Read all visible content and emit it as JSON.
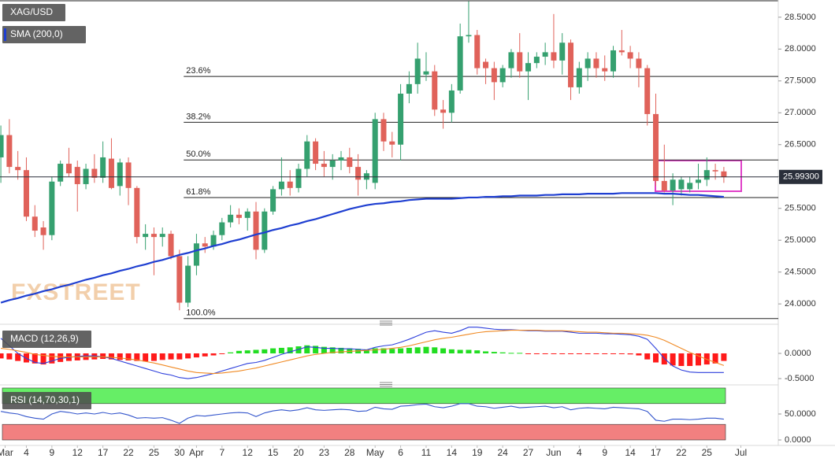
{
  "chart_data": [
    {
      "type": "candlestick",
      "series": [
        {
          "name": "XAG/USD",
          "up_color": "#35a06f",
          "down_color": "#e0625a",
          "open": [
            26.3,
            26.65,
            26.15,
            26.1,
            25.37,
            25.2,
            25.08,
            25.92,
            26.2,
            26.15,
            25.88,
            26.12,
            25.98,
            26.28,
            25.85,
            26.22,
            25.82,
            25.05,
            25.1,
            25.05,
            25.1,
            24.75,
            24.02,
            24.6,
            24.95,
            24.9,
            25.08,
            25.28,
            25.4,
            25.35,
            25.45,
            24.85,
            25.45,
            25.8,
            25.92,
            25.82,
            26.12,
            26.55,
            26.2,
            26.15,
            26.25,
            26.3,
            26.15,
            25.95,
            25.9,
            26.9,
            26.55,
            26.5,
            27.3,
            27.45,
            27.6,
            27.65,
            27.05,
            27.0,
            27.35,
            28.2,
            28.22,
            27.8,
            27.7,
            27.48,
            27.7,
            27.95,
            27.65,
            27.78,
            27.88,
            27.95,
            27.82,
            28.1,
            27.4,
            27.7,
            27.85,
            27.7,
            27.65,
            27.98,
            27.95,
            27.85,
            27.7,
            26.98,
            25.93,
            25.78,
            25.8,
            25.8,
            25.9,
            25.95,
            26.1,
            26.08
          ],
          "high": [
            26.8,
            26.9,
            26.4,
            26.3,
            25.55,
            25.3,
            26.0,
            26.25,
            26.45,
            26.25,
            26.2,
            26.35,
            26.55,
            26.6,
            26.28,
            26.3,
            25.85,
            25.25,
            25.2,
            25.2,
            25.15,
            24.85,
            24.75,
            25.1,
            25.05,
            25.15,
            25.35,
            25.55,
            25.5,
            25.5,
            25.6,
            25.5,
            25.85,
            26.3,
            26.1,
            26.2,
            26.65,
            26.6,
            26.4,
            26.35,
            26.4,
            26.45,
            26.35,
            26.1,
            27.0,
            27.0,
            26.7,
            27.45,
            27.65,
            28.1,
            27.95,
            27.75,
            27.2,
            27.45,
            28.4,
            28.75,
            28.3,
            27.85,
            27.8,
            27.75,
            28.0,
            28.25,
            27.95,
            27.95,
            28.1,
            28.55,
            28.25,
            28.15,
            27.8,
            27.95,
            27.95,
            27.9,
            28.05,
            28.3,
            28.05,
            27.95,
            27.75,
            27.3,
            26.5,
            26.05,
            26.0,
            26.0,
            26.2,
            26.3,
            26.2,
            26.15
          ],
          "low": [
            25.9,
            26.05,
            25.95,
            25.3,
            25.05,
            24.85,
            25.0,
            25.85,
            26.0,
            25.45,
            25.8,
            25.9,
            25.9,
            25.8,
            25.7,
            25.55,
            24.95,
            24.85,
            24.45,
            24.9,
            24.7,
            23.9,
            23.95,
            24.45,
            24.8,
            24.85,
            25.0,
            25.2,
            25.25,
            25.15,
            24.7,
            24.8,
            25.4,
            25.7,
            25.7,
            25.75,
            26.0,
            26.1,
            26.0,
            25.95,
            26.1,
            26.05,
            25.7,
            25.8,
            25.8,
            26.4,
            26.3,
            26.25,
            27.15,
            27.3,
            27.5,
            26.95,
            26.75,
            26.85,
            27.3,
            28.1,
            27.6,
            27.45,
            27.2,
            27.4,
            27.55,
            27.55,
            27.2,
            27.7,
            27.75,
            27.7,
            27.6,
            27.2,
            27.3,
            27.5,
            27.55,
            27.5,
            27.55,
            27.9,
            27.7,
            27.4,
            26.8,
            25.85,
            25.75,
            25.55,
            25.7,
            25.75,
            25.8,
            25.85,
            25.95,
            25.9
          ],
          "close": [
            26.65,
            26.15,
            26.1,
            25.37,
            25.15,
            25.08,
            25.92,
            26.2,
            26.05,
            25.88,
            26.12,
            25.98,
            26.3,
            25.82,
            26.22,
            25.82,
            25.05,
            25.1,
            25.05,
            25.1,
            24.75,
            24.02,
            24.6,
            24.95,
            24.9,
            25.08,
            25.28,
            25.4,
            25.35,
            25.45,
            24.85,
            25.45,
            25.8,
            25.92,
            25.82,
            26.12,
            26.55,
            26.2,
            26.15,
            26.25,
            26.3,
            26.15,
            25.95,
            26.05,
            26.9,
            26.55,
            26.5,
            27.3,
            27.45,
            27.85,
            27.65,
            27.05,
            27.0,
            27.35,
            28.2,
            28.22,
            27.7,
            27.7,
            27.48,
            27.7,
            27.95,
            27.65,
            27.78,
            27.88,
            27.95,
            27.82,
            28.1,
            27.4,
            27.7,
            27.85,
            27.7,
            27.65,
            27.98,
            27.95,
            27.85,
            27.7,
            26.98,
            25.93,
            25.78,
            25.95,
            25.95,
            25.9,
            25.95,
            26.1,
            26.08,
            25.99
          ]
        },
        {
          "name": "SMA (200,0)",
          "color": "#1f3fd1",
          "values": [
            24.02,
            24.06,
            24.09,
            24.13,
            24.16,
            24.2,
            24.23,
            24.27,
            24.3,
            24.34,
            24.38,
            24.41,
            24.45,
            24.48,
            24.52,
            24.55,
            24.59,
            24.62,
            24.66,
            24.69,
            24.73,
            24.77,
            24.8,
            24.84,
            24.87,
            24.91,
            24.94,
            24.98,
            25.01,
            25.05,
            25.09,
            25.12,
            25.16,
            25.19,
            25.23,
            25.26,
            25.3,
            25.33,
            25.37,
            25.41,
            25.45,
            25.49,
            25.52,
            25.55,
            25.57,
            25.58,
            25.6,
            25.61,
            25.63,
            25.64,
            25.65,
            25.65,
            25.65,
            25.65,
            25.66,
            25.67,
            25.67,
            25.68,
            25.68,
            25.69,
            25.69,
            25.7,
            25.7,
            25.7,
            25.71,
            25.71,
            25.72,
            25.72,
            25.72,
            25.73,
            25.73,
            25.73,
            25.73,
            25.74,
            25.74,
            25.74,
            25.74,
            25.74,
            25.73,
            25.73,
            25.72,
            25.71,
            25.71,
            25.7,
            25.69,
            25.68
          ]
        }
      ],
      "fib_levels": [
        {
          "value": 27.57,
          "label": "23.6%"
        },
        {
          "value": 26.85,
          "label": "38.2%"
        },
        {
          "value": 26.26,
          "label": "50.0%"
        },
        {
          "value": 25.67,
          "label": "61.8%"
        },
        {
          "value": 23.77,
          "label": "100.0%"
        }
      ],
      "last_price": {
        "value": 25.993,
        "label": "25.99300"
      },
      "watermark": "FXSTREET",
      "xlim": [
        -0.1,
        91.4
      ],
      "ylim": [
        23.73,
        28.77
      ],
      "yticks": [
        {
          "value": 24,
          "label": "24.0000"
        },
        {
          "value": 24.5,
          "label": "24.5000"
        },
        {
          "value": 25,
          "label": "25.0000"
        },
        {
          "value": 25.5,
          "label": "25.5000"
        },
        {
          "value": 26,
          "label": "26.0000"
        },
        {
          "value": 26.5,
          "label": "26.5000"
        },
        {
          "value": 27,
          "label": "27.0000"
        },
        {
          "value": 27.5,
          "label": "27.5000"
        },
        {
          "value": 28,
          "label": "28.0000"
        },
        {
          "value": 28.5,
          "label": "28.5000"
        }
      ]
    },
    {
      "type": "macd",
      "title": "MACD (12,26,9)",
      "histogram": {
        "up_color": "#22dd22",
        "down_color": "#ff1a1a",
        "values": [
          -0.1,
          -0.12,
          -0.15,
          -0.18,
          -0.2,
          -0.22,
          -0.2,
          -0.17,
          -0.15,
          -0.14,
          -0.13,
          -0.12,
          -0.11,
          -0.12,
          -0.13,
          -0.14,
          -0.15,
          -0.16,
          -0.15,
          -0.13,
          -0.12,
          -0.12,
          -0.1,
          -0.08,
          -0.06,
          -0.04,
          -0.01,
          0.02,
          0.05,
          0.06,
          0.07,
          0.08,
          0.1,
          0.11,
          0.12,
          0.14,
          0.16,
          0.15,
          0.13,
          0.12,
          0.11,
          0.1,
          0.09,
          0.08,
          0.1,
          0.1,
          0.09,
          0.1,
          0.11,
          0.12,
          0.13,
          0.12,
          0.1,
          0.08,
          0.07,
          0.07,
          0.06,
          0.04,
          0.03,
          0.02,
          0.01,
          0.01,
          -0.01,
          -0.01,
          -0.01,
          -0.01,
          -0.01,
          -0.01,
          -0.01,
          -0.01,
          -0.01,
          -0.01,
          -0.01,
          -0.01,
          -0.02,
          -0.04,
          -0.12,
          -0.18,
          -0.22,
          -0.24,
          -0.25,
          -0.25,
          -0.24,
          -0.22,
          -0.2,
          -0.15
        ]
      },
      "series": [
        {
          "color": "#2d3fdc",
          "values": [
            0.3,
            0.15,
            0.0,
            -0.1,
            -0.18,
            -0.2,
            -0.15,
            -0.1,
            -0.08,
            -0.06,
            -0.05,
            -0.05,
            -0.07,
            -0.1,
            -0.15,
            -0.2,
            -0.25,
            -0.3,
            -0.35,
            -0.4,
            -0.43,
            -0.48,
            -0.5,
            -0.48,
            -0.44,
            -0.4,
            -0.35,
            -0.3,
            -0.25,
            -0.2,
            -0.18,
            -0.14,
            -0.08,
            -0.02,
            0.03,
            0.08,
            0.13,
            0.12,
            0.1,
            0.1,
            0.09,
            0.09,
            0.08,
            0.07,
            0.12,
            0.15,
            0.17,
            0.22,
            0.28,
            0.35,
            0.42,
            0.45,
            0.42,
            0.4,
            0.45,
            0.52,
            0.52,
            0.5,
            0.48,
            0.47,
            0.47,
            0.46,
            0.45,
            0.45,
            0.44,
            0.44,
            0.44,
            0.42,
            0.4,
            0.4,
            0.4,
            0.39,
            0.39,
            0.38,
            0.37,
            0.34,
            0.28,
            0.1,
            -0.1,
            -0.25,
            -0.33,
            -0.37,
            -0.38,
            -0.38,
            -0.38,
            -0.38
          ]
        },
        {
          "color": "#f08a24",
          "values": [
            0.1,
            0.08,
            0.05,
            0.02,
            -0.02,
            -0.04,
            -0.06,
            -0.07,
            -0.07,
            -0.07,
            -0.07,
            -0.07,
            -0.07,
            -0.08,
            -0.09,
            -0.11,
            -0.13,
            -0.16,
            -0.19,
            -0.23,
            -0.27,
            -0.31,
            -0.35,
            -0.38,
            -0.39,
            -0.4,
            -0.39,
            -0.37,
            -0.35,
            -0.32,
            -0.29,
            -0.25,
            -0.21,
            -0.17,
            -0.13,
            -0.09,
            -0.05,
            -0.02,
            0.0,
            0.02,
            0.03,
            0.04,
            0.05,
            0.06,
            0.07,
            0.08,
            0.1,
            0.12,
            0.15,
            0.19,
            0.23,
            0.27,
            0.3,
            0.32,
            0.35,
            0.38,
            0.41,
            0.43,
            0.44,
            0.45,
            0.46,
            0.46,
            0.46,
            0.46,
            0.45,
            0.45,
            0.45,
            0.44,
            0.43,
            0.42,
            0.42,
            0.41,
            0.4,
            0.4,
            0.39,
            0.38,
            0.36,
            0.32,
            0.26,
            0.18,
            0.1,
            0.02,
            -0.05,
            -0.12,
            -0.18,
            -0.24
          ]
        }
      ],
      "xlim": [
        -0.1,
        91.4
      ],
      "ylim": [
        -0.578,
        0.484
      ],
      "yticks": [
        {
          "value": 0,
          "label": "0.0000"
        },
        {
          "value": -0.5,
          "label": "-0.5000"
        }
      ]
    },
    {
      "type": "rsi",
      "title": "RSI (14,70,30,1)",
      "bands": [
        {
          "from": 70,
          "to": 100,
          "color": "#66ee66"
        },
        {
          "from": 0,
          "to": 30,
          "color": "#f28080"
        }
      ],
      "series": [
        {
          "color": "#3355cc",
          "values": [
            55,
            52,
            50,
            45,
            42,
            40,
            50,
            55,
            53,
            50,
            52,
            50,
            53,
            50,
            52,
            48,
            42,
            43,
            42,
            43,
            38,
            32,
            42,
            47,
            46,
            48,
            50,
            52,
            53,
            52,
            45,
            52,
            56,
            58,
            56,
            58,
            62,
            58,
            57,
            58,
            59,
            58,
            55,
            56,
            63,
            60,
            59,
            65,
            66,
            68,
            69,
            64,
            62,
            65,
            70,
            70,
            65,
            64,
            61,
            63,
            65,
            62,
            63,
            64,
            65,
            62,
            64,
            58,
            61,
            62,
            61,
            60,
            63,
            62,
            61,
            60,
            55,
            38,
            36,
            40,
            40,
            39,
            40,
            42,
            42,
            40
          ]
        }
      ],
      "xlim": [
        -0.1,
        91.4
      ],
      "ylim": [
        -9.1,
        100
      ],
      "yticks": [
        {
          "value": 0,
          "label": "0.0000"
        },
        {
          "value": 50,
          "label": "50.0000"
        }
      ],
      "xticks": [
        {
          "value": 0.5,
          "label": "Mar"
        },
        {
          "value": 3,
          "label": "4"
        },
        {
          "value": 6,
          "label": "9"
        },
        {
          "value": 9,
          "label": "12"
        },
        {
          "value": 12,
          "label": "17"
        },
        {
          "value": 15,
          "label": "22"
        },
        {
          "value": 18,
          "label": "25"
        },
        {
          "value": 21,
          "label": "30"
        },
        {
          "value": 23,
          "label": "Apr"
        },
        {
          "value": 26,
          "label": "7"
        },
        {
          "value": 29,
          "label": "12"
        },
        {
          "value": 32,
          "label": "15"
        },
        {
          "value": 35,
          "label": "20"
        },
        {
          "value": 38,
          "label": "23"
        },
        {
          "value": 41,
          "label": "28"
        },
        {
          "value": 44,
          "label": "May"
        },
        {
          "value": 47,
          "label": "6"
        },
        {
          "value": 50,
          "label": "11"
        },
        {
          "value": 53,
          "label": "14"
        },
        {
          "value": 56,
          "label": "19"
        },
        {
          "value": 59,
          "label": "24"
        },
        {
          "value": 62,
          "label": "27"
        },
        {
          "value": 65,
          "label": "Jun"
        },
        {
          "value": 68,
          "label": "4"
        },
        {
          "value": 71,
          "label": "9"
        },
        {
          "value": 74,
          "label": "14"
        },
        {
          "value": 77,
          "label": "17"
        },
        {
          "value": 80,
          "label": "22"
        },
        {
          "value": 83,
          "label": "25"
        },
        {
          "value": 87,
          "label": "Jul"
        }
      ]
    }
  ]
}
